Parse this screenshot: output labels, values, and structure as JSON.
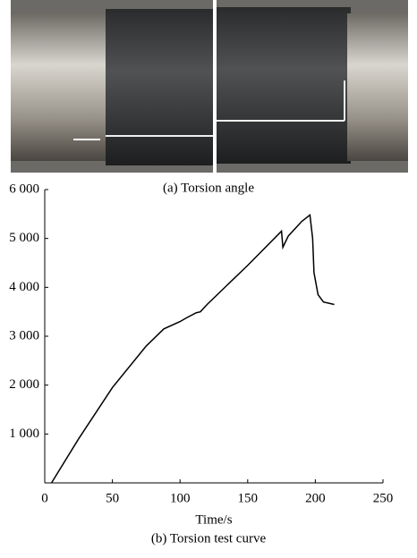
{
  "photo": {
    "caption": "(a) Torsion angle"
  },
  "chart_data": {
    "type": "line",
    "caption": "(b) Torsion test curve",
    "x_label": "Time/s",
    "xlim": [
      0,
      250
    ],
    "xticks": [
      0,
      50,
      100,
      150,
      200,
      250
    ],
    "ylim": [
      0,
      6000
    ],
    "yticks": [
      {
        "value": 1000,
        "label": "1 000"
      },
      {
        "value": 2000,
        "label": "2 000"
      },
      {
        "value": 3000,
        "label": "3 000"
      },
      {
        "value": 4000,
        "label": "4 000"
      },
      {
        "value": 5000,
        "label": "5 000"
      },
      {
        "value": 6000,
        "label": "6 000"
      }
    ],
    "series": [
      {
        "color": "#000000",
        "x": [
          5,
          25,
          50,
          75,
          88,
          100,
          105,
          112,
          115,
          120,
          150,
          175,
          176,
          180,
          190,
          196,
          198,
          199,
          202,
          206,
          214
        ],
        "values": [
          0,
          900,
          1950,
          2800,
          3150,
          3300,
          3380,
          3480,
          3500,
          3650,
          4450,
          5150,
          4820,
          5050,
          5350,
          5480,
          5000,
          4300,
          3850,
          3700,
          3650
        ]
      }
    ]
  }
}
